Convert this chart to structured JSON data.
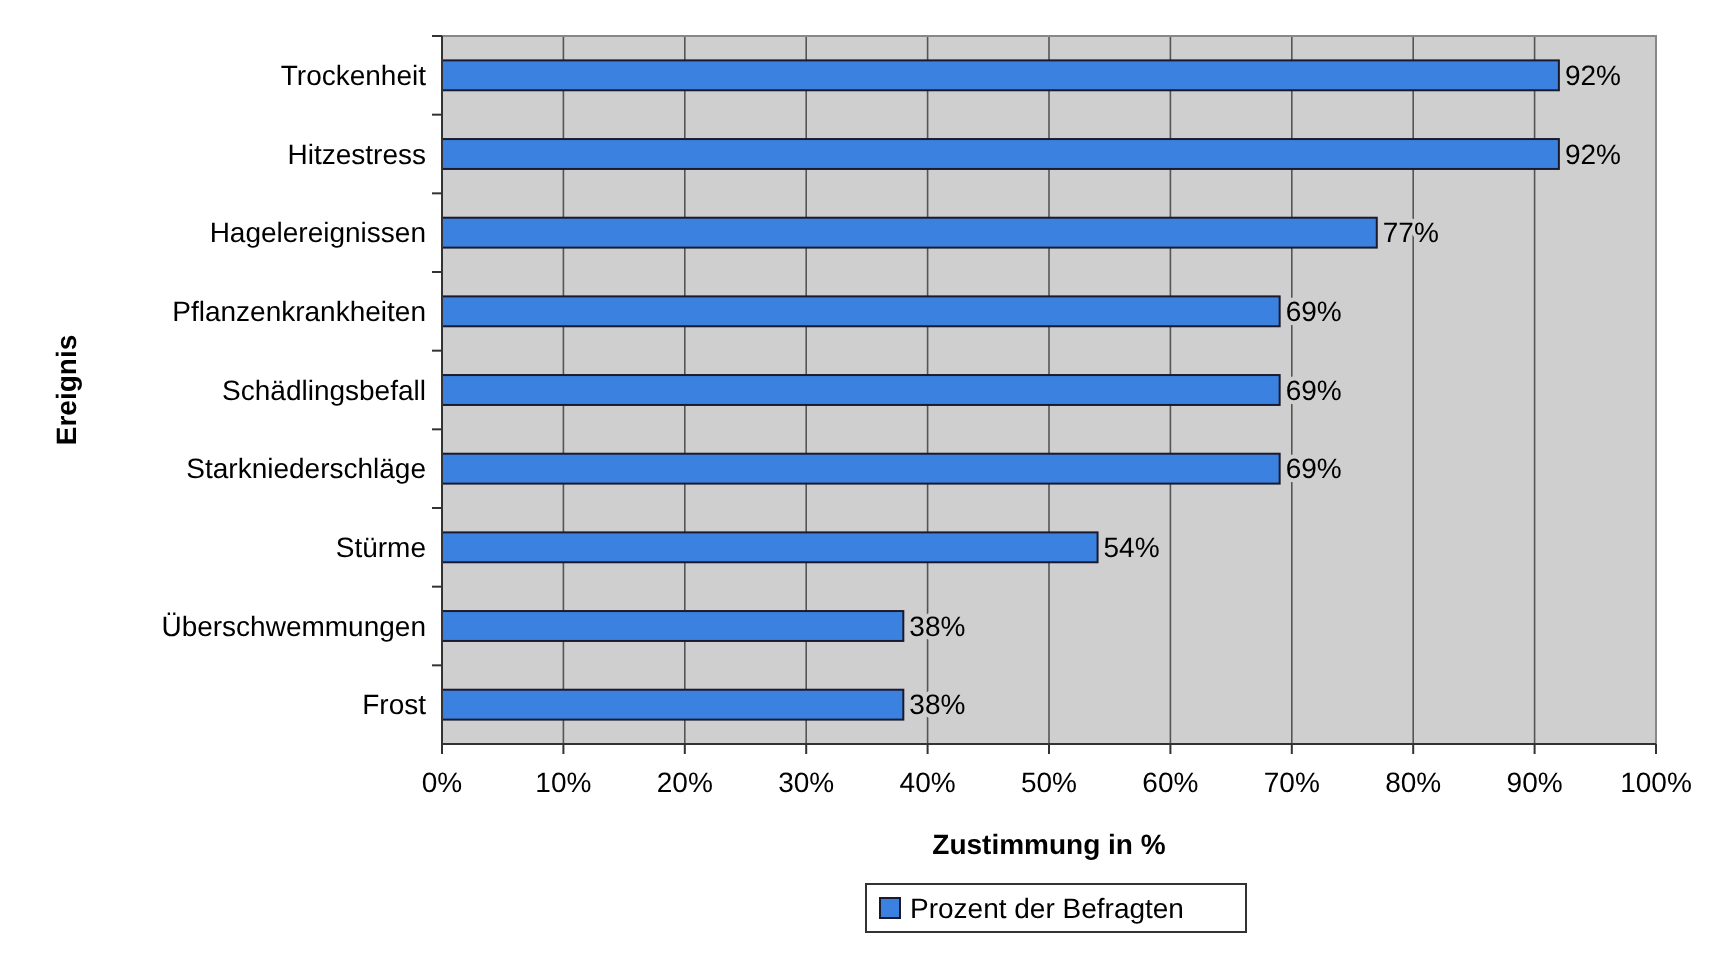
{
  "chart_data": {
    "type": "bar",
    "orientation": "horizontal",
    "xlabel": "Zustimmung in %",
    "ylabel": "Ereignis",
    "categories": [
      "Trockenheit",
      "Hitzestress",
      "Hagelereignissen",
      "Pflanzenkrankheiten",
      "Schädlingsbefall",
      "Starkniederschläge",
      "Stürme",
      "Überschwemmungen",
      "Frost"
    ],
    "series": [
      {
        "name": "Prozent der Befragten",
        "color": "#3b82e0",
        "values": [
          92,
          92,
          77,
          69,
          69,
          69,
          54,
          38,
          38
        ],
        "value_labels": [
          "92%",
          "92%",
          "77%",
          "69%",
          "69%",
          "69%",
          "54%",
          "38%",
          "38%"
        ]
      }
    ],
    "xlim": [
      0,
      100
    ],
    "xticks": [
      {
        "value": 0,
        "label": "0%"
      },
      {
        "value": 10,
        "label": "10%"
      },
      {
        "value": 20,
        "label": "20%"
      },
      {
        "value": 30,
        "label": "30%"
      },
      {
        "value": 40,
        "label": "40%"
      },
      {
        "value": 50,
        "label": "50%"
      },
      {
        "value": 60,
        "label": "60%"
      },
      {
        "value": 70,
        "label": "70%"
      },
      {
        "value": 80,
        "label": "80%"
      },
      {
        "value": 90,
        "label": "90%"
      },
      {
        "value": 100,
        "label": "100%"
      }
    ],
    "grid": "x",
    "legend": "bottom"
  }
}
